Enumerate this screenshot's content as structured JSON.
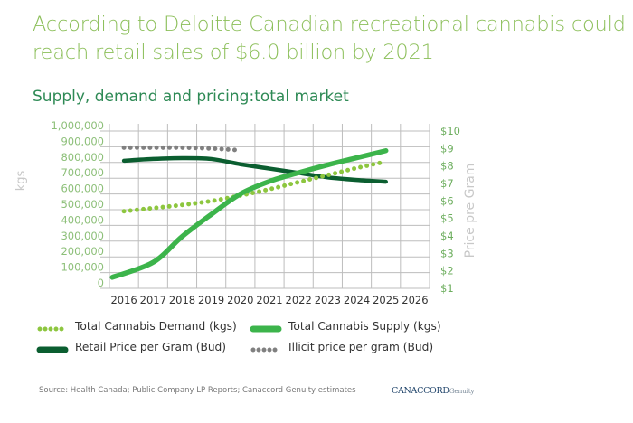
{
  "title": "According to Deloitte Canadian recreational cannabis could reach retail sales of $6.0 billion by 2021",
  "subtitle": "Supply, demand and pricing:total market",
  "chart_data": {
    "type": "line",
    "title": "Supply, demand and pricing:total market",
    "x": [
      2016,
      2017,
      2018,
      2019,
      2020,
      2021,
      2022,
      2023,
      2024,
      2025
    ],
    "x_ticks": [
      "2016",
      "2017",
      "2018",
      "2019",
      "2020",
      "2021",
      "2022",
      "2023",
      "2024",
      "2025",
      "2026"
    ],
    "ylabel_left": "kgs",
    "ylabel_right": "Price pre Gram",
    "ylim_left": [
      0,
      1000000
    ],
    "ylim_right": [
      1,
      10
    ],
    "y_ticks_left": [
      "1,000,000",
      "900,000",
      "800,000",
      "700,000",
      "600,000",
      "500,000",
      "400,000",
      "300,000",
      "200,000",
      "100,000",
      "0"
    ],
    "y_ticks_right": [
      "$10",
      "$9",
      "$8",
      "$7",
      "$6",
      "$5",
      "$4",
      "$3",
      "$2",
      "$1"
    ],
    "grid": true,
    "legend_position": "bottom",
    "series": [
      {
        "name": "Total Cannabis Demand (kgs)",
        "axis": "left",
        "style": "dotted",
        "color": "#8dc63f",
        "x": [
          2016,
          2017,
          2018,
          2019,
          2020,
          2021,
          2022,
          2023,
          2024,
          2025
        ],
        "values": [
          490000,
          510000,
          530000,
          555000,
          590000,
          630000,
          675000,
          720000,
          765000,
          805000
        ]
      },
      {
        "name": "Total Cannabis Supply (kgs)",
        "axis": "left",
        "style": "solid-thick",
        "color": "#3cb44b",
        "x": [
          2015.6,
          2017,
          2018,
          2019,
          2020,
          2021,
          2022,
          2023,
          2024,
          2025
        ],
        "values": [
          70000,
          165000,
          330000,
          470000,
          600000,
          680000,
          735000,
          785000,
          830000,
          875000
        ]
      },
      {
        "name": "Retail Price per Gram (Bud)",
        "axis": "right",
        "style": "solid",
        "color": "#0b5e30",
        "x": [
          2016,
          2017,
          2018,
          2019,
          2020,
          2021,
          2022,
          2023,
          2024,
          2025
        ],
        "values": [
          8.3,
          8.4,
          8.45,
          8.4,
          8.1,
          7.85,
          7.6,
          7.35,
          7.2,
          7.1
        ]
      },
      {
        "name": "Illicit price per gram (Bud)",
        "axis": "right",
        "style": "dotted",
        "color": "#808080",
        "x": [
          2016,
          2017,
          2018,
          2019,
          2020
        ],
        "values": [
          9.05,
          9.05,
          9.05,
          9.0,
          8.9
        ]
      }
    ]
  },
  "legend": [
    {
      "label": "Total Cannabis Demand (kgs)",
      "style": "dotted",
      "color": "#8dc63f"
    },
    {
      "label": "Total Cannabis Supply (kgs)",
      "style": "solid-thick",
      "color": "#3cb44b"
    },
    {
      "label": "Retail Price per Gram (Bud)",
      "style": "solid",
      "color": "#0b5e30"
    },
    {
      "label": "Illicit price per gram (Bud)",
      "style": "dotted",
      "color": "#808080"
    }
  ],
  "source": "Source: Health Canada; Public Company LP Reports; Canaccord Genuity estimates",
  "logo": {
    "main": "CANACCORD",
    "sub": "Genuity"
  }
}
